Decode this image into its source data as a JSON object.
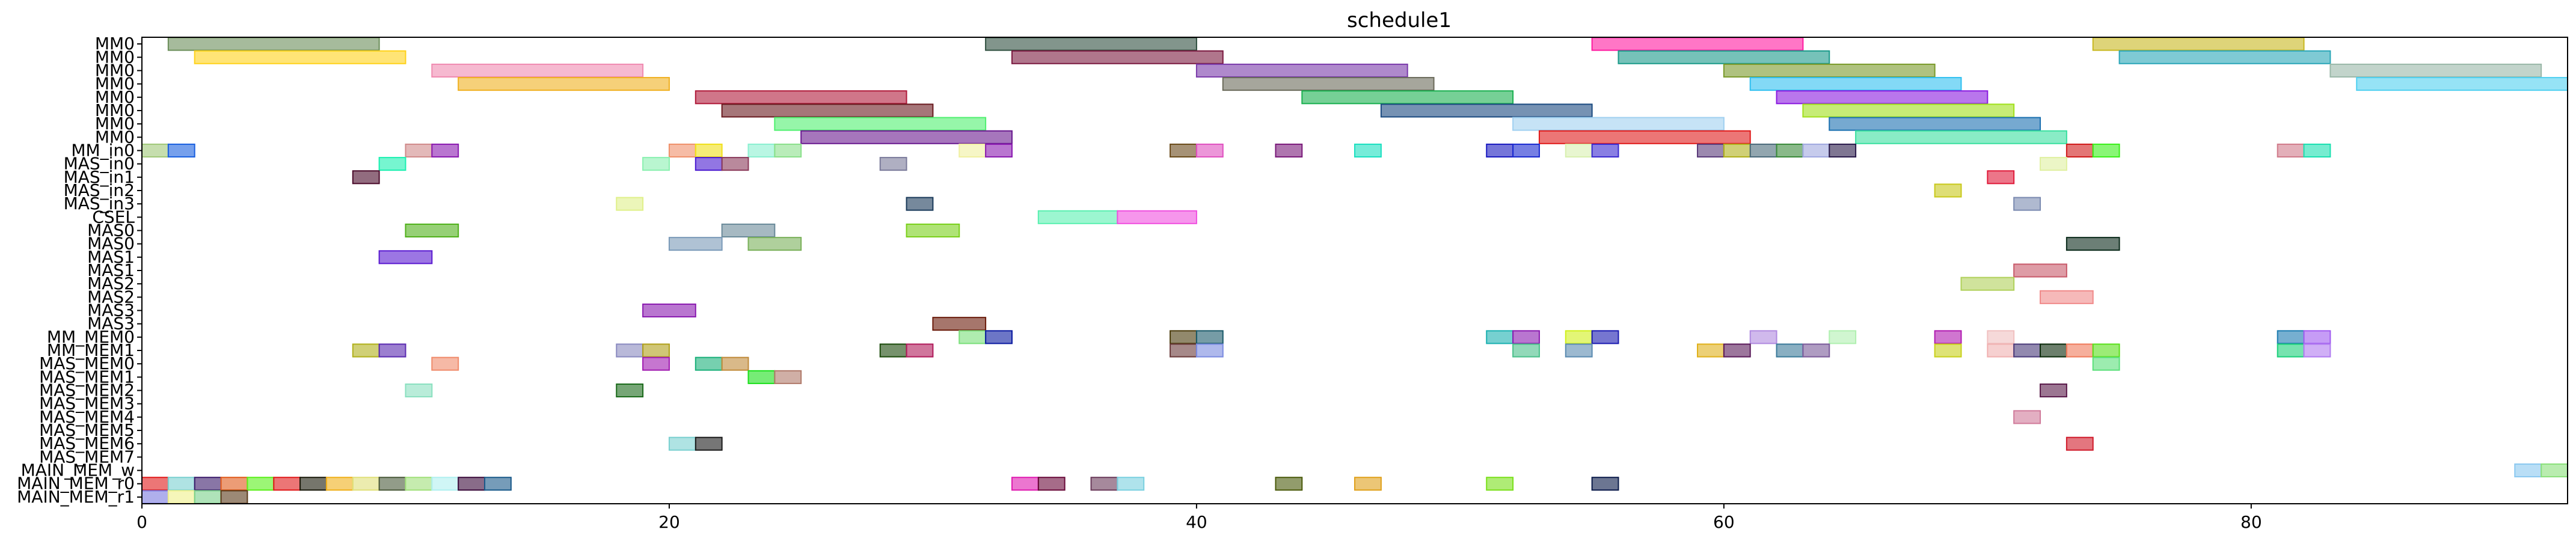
{
  "chart_data": {
    "type": "gantt",
    "title": "schedule1",
    "xlabel": "",
    "ylabel": "",
    "xlim": [
      0,
      92
    ],
    "x_ticks": [
      0,
      20,
      40,
      60,
      80
    ],
    "grid": false,
    "legend": "none",
    "rows": [
      "MM0",
      "MM0",
      "MM0",
      "MM0",
      "MM0",
      "MM0",
      "MM0",
      "MM0",
      "MM_in0",
      "MAS_in0",
      "MAS_in1",
      "MAS_in2",
      "MAS_in3",
      "CSEL",
      "MAS0",
      "MAS0",
      "MAS1",
      "MAS1",
      "MAS2",
      "MAS2",
      "MAS3",
      "MAS3",
      "MM_MEM0",
      "MM_MEM1",
      "MAS_MEM0",
      "MAS_MEM1",
      "MAS_MEM2",
      "MAS_MEM3",
      "MAS_MEM4",
      "MAS_MEM5",
      "MAS_MEM6",
      "MAS_MEM7",
      "MAIN_MEM_w",
      "MAIN_MEM_r0",
      "MAIN_MEM_r1"
    ],
    "tasks": [
      {
        "row": 0,
        "start": 1,
        "end": 9,
        "color": "#6b8e5a"
      },
      {
        "row": 0,
        "start": 32,
        "end": 40,
        "color": "#2f4f3f"
      },
      {
        "row": 0,
        "start": 55,
        "end": 63,
        "color": "#ff1aa0"
      },
      {
        "row": 0,
        "start": 74,
        "end": 82,
        "color": "#c8b820"
      },
      {
        "row": 1,
        "start": 2,
        "end": 10,
        "color": "#ffd21a"
      },
      {
        "row": 1,
        "start": 33,
        "end": 41,
        "color": "#7b1a40"
      },
      {
        "row": 1,
        "start": 56,
        "end": 64,
        "color": "#1a9a8a"
      },
      {
        "row": 1,
        "start": 75,
        "end": 83,
        "color": "#2aa6b8"
      },
      {
        "row": 2,
        "start": 11,
        "end": 19,
        "color": "#f08ab0"
      },
      {
        "row": 2,
        "start": 40,
        "end": 48,
        "color": "#7a3aaa"
      },
      {
        "row": 2,
        "start": 60,
        "end": 68,
        "color": "#7a9a2a"
      },
      {
        "row": 2,
        "start": 83,
        "end": 91,
        "color": "#9ab8a8"
      },
      {
        "row": 3,
        "start": 12,
        "end": 20,
        "color": "#f0b020"
      },
      {
        "row": 3,
        "start": 41,
        "end": 49,
        "color": "#6a6a5a"
      },
      {
        "row": 3,
        "start": 61,
        "end": 69,
        "color": "#30c0f0"
      },
      {
        "row": 3,
        "start": 84,
        "end": 92,
        "color": "#50d0f0"
      },
      {
        "row": 4,
        "start": 21,
        "end": 29,
        "color": "#b01a3a"
      },
      {
        "row": 4,
        "start": 44,
        "end": 52,
        "color": "#1ab050"
      },
      {
        "row": 4,
        "start": 62,
        "end": 70,
        "color": "#8a1ae0"
      },
      {
        "row": 5,
        "start": 22,
        "end": 30,
        "color": "#6a1a20"
      },
      {
        "row": 5,
        "start": 47,
        "end": 55,
        "color": "#1a4a80"
      },
      {
        "row": 5,
        "start": 63,
        "end": 71,
        "color": "#a0e01a"
      },
      {
        "row": 6,
        "start": 24,
        "end": 32,
        "color": "#50f070"
      },
      {
        "row": 6,
        "start": 52,
        "end": 60,
        "color": "#a0d0f0"
      },
      {
        "row": 6,
        "start": 64,
        "end": 72,
        "color": "#1a70b0"
      },
      {
        "row": 7,
        "start": 25,
        "end": 33,
        "color": "#6a1a90"
      },
      {
        "row": 7,
        "start": 53,
        "end": 61,
        "color": "#e01a1a"
      },
      {
        "row": 7,
        "start": 65,
        "end": 73,
        "color": "#3ae0a0"
      },
      {
        "row": 8,
        "start": 0,
        "end": 1,
        "color": "#a0c878"
      },
      {
        "row": 8,
        "start": 1,
        "end": 2,
        "color": "#1a60e0"
      },
      {
        "row": 8,
        "start": 10,
        "end": 11,
        "color": "#d08a8a"
      },
      {
        "row": 8,
        "start": 11,
        "end": 12,
        "color": "#8a1ab0"
      },
      {
        "row": 8,
        "start": 20,
        "end": 21,
        "color": "#f0906a"
      },
      {
        "row": 8,
        "start": 21,
        "end": 22,
        "color": "#f0e01a"
      },
      {
        "row": 8,
        "start": 23,
        "end": 24,
        "color": "#8af0d0"
      },
      {
        "row": 8,
        "start": 24,
        "end": 25,
        "color": "#8ae08a"
      },
      {
        "row": 8,
        "start": 31,
        "end": 32,
        "color": "#f0f0a0"
      },
      {
        "row": 8,
        "start": 32,
        "end": 33,
        "color": "#8a1ab0"
      },
      {
        "row": 8,
        "start": 39,
        "end": 40,
        "color": "#6a4a1a"
      },
      {
        "row": 8,
        "start": 40,
        "end": 41,
        "color": "#e050c0"
      },
      {
        "row": 8,
        "start": 43,
        "end": 44,
        "color": "#7a1a7a"
      },
      {
        "row": 8,
        "start": 46,
        "end": 47,
        "color": "#1ae0c0"
      },
      {
        "row": 8,
        "start": 51,
        "end": 52,
        "color": "#1a1ac0"
      },
      {
        "row": 8,
        "start": 52,
        "end": 53,
        "color": "#1a2ad0"
      },
      {
        "row": 8,
        "start": 54,
        "end": 55,
        "color": "#d8f0b0"
      },
      {
        "row": 8,
        "start": 55,
        "end": 56,
        "color": "#3a2ad0"
      },
      {
        "row": 8,
        "start": 59,
        "end": 60,
        "color": "#5a3a7a"
      },
      {
        "row": 8,
        "start": 60,
        "end": 61,
        "color": "#b0b01a"
      },
      {
        "row": 8,
        "start": 61,
        "end": 62,
        "color": "#4a6a7a"
      },
      {
        "row": 8,
        "start": 62,
        "end": 63,
        "color": "#3a8a3a"
      },
      {
        "row": 8,
        "start": 63,
        "end": 64,
        "color": "#a0a8e0"
      },
      {
        "row": 8,
        "start": 64,
        "end": 65,
        "color": "#2a1a4a"
      },
      {
        "row": 8,
        "start": 73,
        "end": 74,
        "color": "#d01a1a"
      },
      {
        "row": 8,
        "start": 74,
        "end": 75,
        "color": "#3af01a"
      },
      {
        "row": 8,
        "start": 81,
        "end": 82,
        "color": "#d07a8a"
      },
      {
        "row": 8,
        "start": 82,
        "end": 83,
        "color": "#1ae0b0"
      },
      {
        "row": 9,
        "start": 9,
        "end": 10,
        "color": "#1af0b0"
      },
      {
        "row": 9,
        "start": 19,
        "end": 20,
        "color": "#8af0b0"
      },
      {
        "row": 9,
        "start": 21,
        "end": 22,
        "color": "#4a1ad0"
      },
      {
        "row": 9,
        "start": 22,
        "end": 23,
        "color": "#8a3a5a"
      },
      {
        "row": 9,
        "start": 28,
        "end": 29,
        "color": "#7a7a9a"
      },
      {
        "row": 9,
        "start": 72,
        "end": 73,
        "color": "#e0f0a0"
      },
      {
        "row": 10,
        "start": 8,
        "end": 9,
        "color": "#4a0a2a"
      },
      {
        "row": 10,
        "start": 70,
        "end": 71,
        "color": "#e01a3a"
      },
      {
        "row": 11,
        "start": 68,
        "end": 69,
        "color": "#c8c81a"
      },
      {
        "row": 12,
        "start": 18,
        "end": 19,
        "color": "#e0f08a"
      },
      {
        "row": 12,
        "start": 29,
        "end": 30,
        "color": "#1a3a5a"
      },
      {
        "row": 12,
        "start": 71,
        "end": 72,
        "color": "#7a8ab0"
      },
      {
        "row": 13,
        "start": 34,
        "end": 37,
        "color": "#5af0b0"
      },
      {
        "row": 13,
        "start": 37,
        "end": 40,
        "color": "#f050e0"
      },
      {
        "row": 14,
        "start": 10,
        "end": 12,
        "color": "#50b01a"
      },
      {
        "row": 14,
        "start": 22,
        "end": 24,
        "color": "#6a8a9a"
      },
      {
        "row": 14,
        "start": 29,
        "end": 31,
        "color": "#7ad01a"
      },
      {
        "row": 15,
        "start": 20,
        "end": 22,
        "color": "#7a9ab8"
      },
      {
        "row": 15,
        "start": 23,
        "end": 25,
        "color": "#7ab05a"
      },
      {
        "row": 15,
        "start": 73,
        "end": 75,
        "color": "#0a2a1a"
      },
      {
        "row": 16,
        "start": 9,
        "end": 11,
        "color": "#5a1ad0"
      },
      {
        "row": 17,
        "start": 71,
        "end": 73,
        "color": "#c85a6a"
      },
      {
        "row": 18,
        "start": 69,
        "end": 71,
        "color": "#b0d05a"
      },
      {
        "row": 19,
        "start": 72,
        "end": 74,
        "color": "#f08a8a"
      },
      {
        "row": 20,
        "start": 19,
        "end": 21,
        "color": "#8a1ab0"
      },
      {
        "row": 21,
        "start": 30,
        "end": 32,
        "color": "#6a1a0a"
      },
      {
        "row": 22,
        "start": 31,
        "end": 32,
        "color": "#7ae07a"
      },
      {
        "row": 22,
        "start": 32,
        "end": 33,
        "color": "#0a1aa0"
      },
      {
        "row": 22,
        "start": 39,
        "end": 40,
        "color": "#4a3a0a"
      },
      {
        "row": 22,
        "start": 40,
        "end": 41,
        "color": "#1a5a6a"
      },
      {
        "row": 22,
        "start": 51,
        "end": 52,
        "color": "#1ab0b0"
      },
      {
        "row": 22,
        "start": 52,
        "end": 53,
        "color": "#8a1ab0"
      },
      {
        "row": 22,
        "start": 54,
        "end": 55,
        "color": "#d0f01a"
      },
      {
        "row": 22,
        "start": 55,
        "end": 56,
        "color": "#1a1ab0"
      },
      {
        "row": 22,
        "start": 61,
        "end": 62,
        "color": "#b08ae0"
      },
      {
        "row": 22,
        "start": 64,
        "end": 65,
        "color": "#b0f0b0"
      },
      {
        "row": 22,
        "start": 68,
        "end": 69,
        "color": "#b01ab0"
      },
      {
        "row": 22,
        "start": 70,
        "end": 71,
        "color": "#f0c0c0"
      },
      {
        "row": 22,
        "start": 81,
        "end": 82,
        "color": "#1a7ab0"
      },
      {
        "row": 22,
        "start": 82,
        "end": 83,
        "color": "#a05af0"
      },
      {
        "row": 23,
        "start": 8,
        "end": 9,
        "color": "#b0b01a"
      },
      {
        "row": 23,
        "start": 9,
        "end": 10,
        "color": "#5a2ab0"
      },
      {
        "row": 23,
        "start": 18,
        "end": 19,
        "color": "#8a8ac0"
      },
      {
        "row": 23,
        "start": 19,
        "end": 20,
        "color": "#b0a01a"
      },
      {
        "row": 23,
        "start": 28,
        "end": 29,
        "color": "#1a4a0a"
      },
      {
        "row": 23,
        "start": 29,
        "end": 30,
        "color": "#b01a5a"
      },
      {
        "row": 23,
        "start": 39,
        "end": 40,
        "color": "#6a3a3a"
      },
      {
        "row": 23,
        "start": 40,
        "end": 41,
        "color": "#7a8ae0"
      },
      {
        "row": 23,
        "start": 52,
        "end": 53,
        "color": "#4ac08a"
      },
      {
        "row": 23,
        "start": 54,
        "end": 55,
        "color": "#5a8ab0"
      },
      {
        "row": 23,
        "start": 59,
        "end": 60,
        "color": "#e0b01a"
      },
      {
        "row": 23,
        "start": 60,
        "end": 61,
        "color": "#5a1a5a"
      },
      {
        "row": 23,
        "start": 62,
        "end": 63,
        "color": "#3a7a9a"
      },
      {
        "row": 23,
        "start": 63,
        "end": 64,
        "color": "#7a5a9a"
      },
      {
        "row": 23,
        "start": 68,
        "end": 69,
        "color": "#c8d01a"
      },
      {
        "row": 23,
        "start": 70,
        "end": 71,
        "color": "#f0b0b0"
      },
      {
        "row": 23,
        "start": 71,
        "end": 72,
        "color": "#4a3a7a"
      },
      {
        "row": 23,
        "start": 72,
        "end": 73,
        "color": "#0a2a0a"
      },
      {
        "row": 23,
        "start": 73,
        "end": 74,
        "color": "#f07a5a"
      },
      {
        "row": 23,
        "start": 74,
        "end": 75,
        "color": "#5ae01a"
      },
      {
        "row": 23,
        "start": 81,
        "end": 82,
        "color": "#1ad07a"
      },
      {
        "row": 23,
        "start": 82,
        "end": 83,
        "color": "#b07af0"
      },
      {
        "row": 24,
        "start": 11,
        "end": 12,
        "color": "#f08a6a"
      },
      {
        "row": 24,
        "start": 19,
        "end": 20,
        "color": "#a01ab0"
      },
      {
        "row": 24,
        "start": 21,
        "end": 22,
        "color": "#1ab07a"
      },
      {
        "row": 24,
        "start": 22,
        "end": 23,
        "color": "#c08a3a"
      },
      {
        "row": 24,
        "start": 74,
        "end": 75,
        "color": "#5ae07a"
      },
      {
        "row": 25,
        "start": 23,
        "end": 24,
        "color": "#1ae01a"
      },
      {
        "row": 25,
        "start": 24,
        "end": 25,
        "color": "#b07a6a"
      },
      {
        "row": 26,
        "start": 10,
        "end": 11,
        "color": "#8ae0c0"
      },
      {
        "row": 26,
        "start": 18,
        "end": 19,
        "color": "#1a6a1a"
      },
      {
        "row": 26,
        "start": 72,
        "end": 73,
        "color": "#5a1a4a"
      },
      {
        "row": 28,
        "start": 71,
        "end": 72,
        "color": "#d07a9a"
      },
      {
        "row": 30,
        "start": 20,
        "end": 21,
        "color": "#7ad0d0"
      },
      {
        "row": 30,
        "start": 21,
        "end": 22,
        "color": "#1a1a1a"
      },
      {
        "row": 30,
        "start": 73,
        "end": 74,
        "color": "#d01a2a"
      },
      {
        "row": 32,
        "start": 90,
        "end": 91,
        "color": "#8ac8f0"
      },
      {
        "row": 32,
        "start": 91,
        "end": 92,
        "color": "#8ae07a"
      },
      {
        "row": 33,
        "start": 0,
        "end": 1,
        "color": "#e01a1a"
      },
      {
        "row": 33,
        "start": 1,
        "end": 2,
        "color": "#7ad0d0"
      },
      {
        "row": 33,
        "start": 2,
        "end": 3,
        "color": "#3a1a6a"
      },
      {
        "row": 33,
        "start": 3,
        "end": 4,
        "color": "#e05a1a"
      },
      {
        "row": 33,
        "start": 4,
        "end": 5,
        "color": "#5af01a"
      },
      {
        "row": 33,
        "start": 5,
        "end": 6,
        "color": "#e01a1a"
      },
      {
        "row": 33,
        "start": 6,
        "end": 7,
        "color": "#1a1a0a"
      },
      {
        "row": 33,
        "start": 7,
        "end": 8,
        "color": "#f0b01a"
      },
      {
        "row": 33,
        "start": 8,
        "end": 9,
        "color": "#e0e07a"
      },
      {
        "row": 33,
        "start": 9,
        "end": 10,
        "color": "#4a5a3a"
      },
      {
        "row": 33,
        "start": 10,
        "end": 11,
        "color": "#a0e07a"
      },
      {
        "row": 33,
        "start": 11,
        "end": 12,
        "color": "#b0f0f0"
      },
      {
        "row": 33,
        "start": 12,
        "end": 13,
        "color": "#3a0a3a"
      },
      {
        "row": 33,
        "start": 13,
        "end": 14,
        "color": "#1a5a8a"
      },
      {
        "row": 33,
        "start": 33,
        "end": 34,
        "color": "#e01ab0"
      },
      {
        "row": 33,
        "start": 34,
        "end": 35,
        "color": "#6a0a3a"
      },
      {
        "row": 33,
        "start": 36,
        "end": 37,
        "color": "#6a3a5a"
      },
      {
        "row": 33,
        "start": 37,
        "end": 38,
        "color": "#7ad0e0"
      },
      {
        "row": 33,
        "start": 43,
        "end": 44,
        "color": "#4a5a0a"
      },
      {
        "row": 33,
        "start": 46,
        "end": 47,
        "color": "#e0a01a"
      },
      {
        "row": 33,
        "start": 51,
        "end": 52,
        "color": "#7ae01a"
      },
      {
        "row": 33,
        "start": 55,
        "end": 56,
        "color": "#0a1a4a"
      },
      {
        "row": 34,
        "start": 0,
        "end": 1,
        "color": "#7a7ae0"
      },
      {
        "row": 34,
        "start": 1,
        "end": 2,
        "color": "#f0f08a"
      },
      {
        "row": 34,
        "start": 2,
        "end": 3,
        "color": "#7ad08a"
      },
      {
        "row": 34,
        "start": 3,
        "end": 4,
        "color": "#5a3a1a"
      }
    ]
  }
}
